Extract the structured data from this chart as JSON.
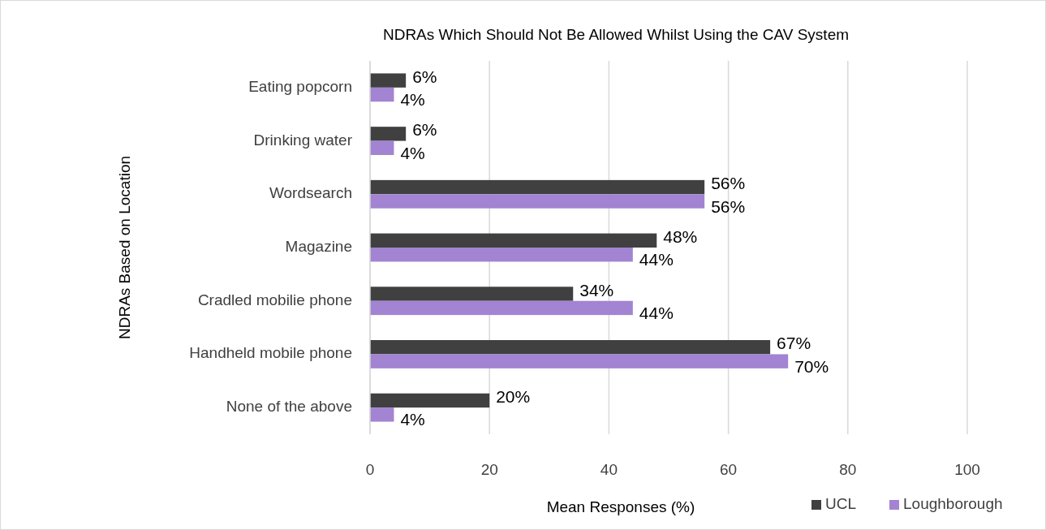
{
  "chart_data": {
    "type": "bar",
    "orientation": "horizontal",
    "title": "NDRAs Which Should Not Be Allowed Whilst Using the CAV System",
    "xlabel": "Mean Responses (%)",
    "ylabel": "NDRAs Based on Location",
    "categories": [
      "Eating popcorn",
      "Drinking water",
      "Wordsearch",
      "Magazine",
      "Cradled mobilie phone",
      "Handheld mobile phone",
      "None of the above"
    ],
    "series": [
      {
        "name": "UCL",
        "color": "#404040",
        "values": [
          6,
          6,
          56,
          48,
          34,
          67,
          20
        ],
        "value_labels": [
          "6%",
          "6%",
          "56%",
          "48%",
          "34%",
          "67%",
          "20%"
        ]
      },
      {
        "name": "Loughborough",
        "color": "#a284d2",
        "values": [
          4,
          4,
          56,
          44,
          44,
          70,
          4
        ],
        "value_labels": [
          "4%",
          "4%",
          "56%",
          "44%",
          "44%",
          "70%",
          "4%"
        ]
      }
    ],
    "xlim": [
      0,
      100
    ],
    "xticks": [
      0,
      20,
      40,
      60,
      80,
      100
    ],
    "grid": "x",
    "legend": "bottom right"
  }
}
